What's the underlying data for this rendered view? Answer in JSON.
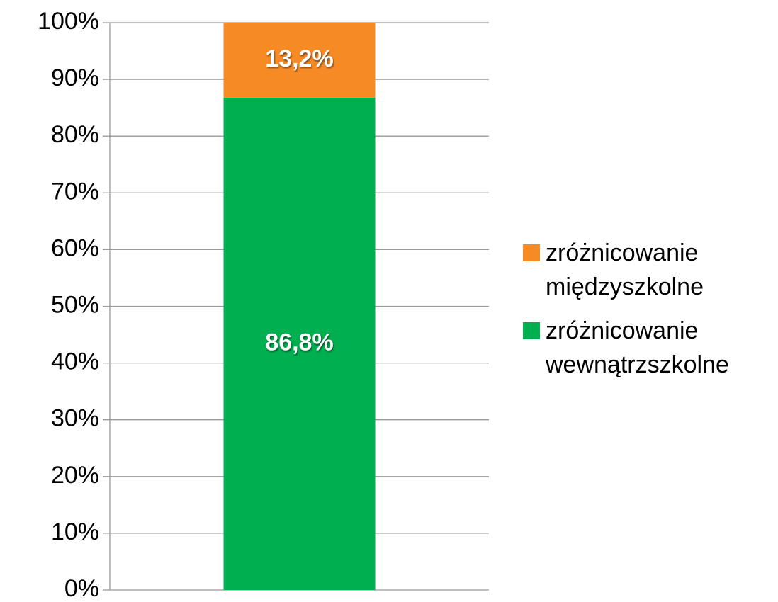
{
  "chart_data": {
    "type": "stacked_bar",
    "categories": [
      null
    ],
    "series": [
      {
        "name": "zróżnicowanie wewnątrzszkolne",
        "color": "#00b050",
        "values": [
          86.8
        ],
        "value_labels": [
          "86,8%"
        ]
      },
      {
        "name": "zróżnicowanie międzyszkolne",
        "color": "#f68b26",
        "values": [
          13.2
        ],
        "value_labels": [
          "13,2%"
        ]
      }
    ],
    "ylim": [
      0,
      100
    ],
    "yticks": [
      {
        "value": 0,
        "label": "0%"
      },
      {
        "value": 10,
        "label": "10%"
      },
      {
        "value": 20,
        "label": "20%"
      },
      {
        "value": 30,
        "label": "30%"
      },
      {
        "value": 40,
        "label": "40%"
      },
      {
        "value": 50,
        "label": "50%"
      },
      {
        "value": 60,
        "label": "60%"
      },
      {
        "value": 70,
        "label": "70%"
      },
      {
        "value": 80,
        "label": "80%"
      },
      {
        "value": 90,
        "label": "90%"
      },
      {
        "value": 100,
        "label": "100%"
      }
    ],
    "grid": true,
    "legend": "right"
  }
}
